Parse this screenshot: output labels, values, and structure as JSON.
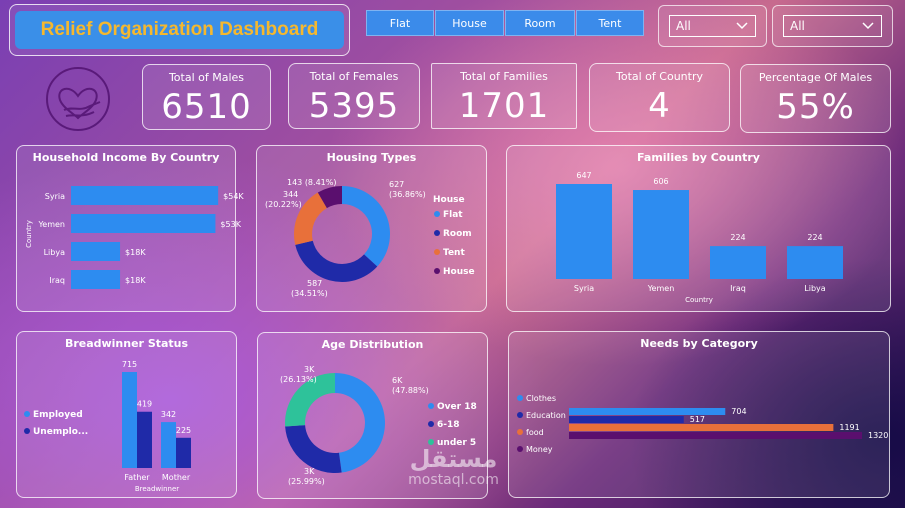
{
  "header": {
    "title": "Relief Organization Dashboard"
  },
  "slicers": [
    {
      "label": "Flat"
    },
    {
      "label": "House"
    },
    {
      "label": "Room"
    },
    {
      "label": "Tent"
    }
  ],
  "dropdowns": [
    {
      "value": "All"
    },
    {
      "value": "All"
    }
  ],
  "kpis": [
    {
      "label": "Total of Males",
      "value": "6510"
    },
    {
      "label": "Total of Females",
      "value": "5395"
    },
    {
      "label": "Total of Families",
      "value": "1701"
    },
    {
      "label": "Total of Country",
      "value": "4"
    },
    {
      "label": "Percentage Of Males",
      "value": "55%"
    }
  ],
  "logo": {
    "icon": "heart-hands-icon"
  },
  "watermark": {
    "text": "mostaql.com",
    "arabic": "مستقل"
  },
  "colors": {
    "primary": "#2d8cf0",
    "navy": "#1f2aa8",
    "orange": "#e8703a",
    "purple": "#5a0f6e",
    "teal": "#2ec29a",
    "title": "#f5b82e"
  },
  "chart_data": [
    {
      "id": "income",
      "type": "bar",
      "orientation": "horizontal",
      "title": "Household Income By Country",
      "ylabel": "Country",
      "categories": [
        "Syria",
        "Yemen",
        "Libya",
        "Iraq"
      ],
      "values": [
        54,
        53,
        18,
        18
      ],
      "labels": [
        "$54K",
        "$53K",
        "$18K",
        "$18K"
      ],
      "xlim": [
        0,
        60
      ]
    },
    {
      "id": "housing",
      "type": "pie",
      "donut": true,
      "title": "Housing Types",
      "legend_title": "House",
      "legend": [
        "Flat",
        "Room",
        "Tent",
        "House"
      ],
      "slices": [
        {
          "name": "Flat",
          "value": 627,
          "label": "627",
          "pct": "(36.86%)"
        },
        {
          "name": "Room",
          "value": 587,
          "label": "587",
          "pct": "(34.51%)"
        },
        {
          "name": "Tent",
          "value": 344,
          "label": "344",
          "pct": "(20.22%)"
        },
        {
          "name": "House",
          "value": 143,
          "label": "143 (8.41%)",
          "pct": ""
        }
      ]
    },
    {
      "id": "families",
      "type": "bar",
      "title": "Families by Country",
      "xlabel": "Country",
      "categories": [
        "Syria",
        "Yemen",
        "Iraq",
        "Libya"
      ],
      "values": [
        647,
        606,
        224,
        224
      ],
      "ylim": [
        0,
        700
      ]
    },
    {
      "id": "breadwinner",
      "type": "bar",
      "title": "Breadwinner Status",
      "xlabel": "Breadwinner",
      "legend": [
        "Employed",
        "Unemplo..."
      ],
      "categories": [
        "Father",
        "Mother"
      ],
      "series": [
        {
          "name": "Employed",
          "values": [
            715,
            342
          ]
        },
        {
          "name": "Unemplo...",
          "values": [
            419,
            225
          ]
        }
      ],
      "ylim": [
        0,
        800
      ]
    },
    {
      "id": "age",
      "type": "pie",
      "donut": true,
      "title": "Age Distribution",
      "legend": [
        "Over 18",
        "6-18",
        "under 5"
      ],
      "slices": [
        {
          "name": "Over 18",
          "value": 47.88,
          "label": "6K",
          "pct": "(47.88%)"
        },
        {
          "name": "6-18",
          "value": 25.99,
          "label": "3K",
          "pct": "(25.99%)"
        },
        {
          "name": "under 5",
          "value": 26.13,
          "label": "3K",
          "pct": "(26.13%)"
        }
      ]
    },
    {
      "id": "needs",
      "type": "bar",
      "orientation": "horizontal",
      "title": "Needs by Category",
      "legend": [
        "Clothes",
        "Education",
        "food",
        "Money"
      ],
      "categories": [
        "Clothes",
        "Education",
        "food",
        "Money"
      ],
      "values": [
        704,
        517,
        1191,
        1320
      ],
      "xlim": [
        0,
        1400
      ]
    }
  ]
}
